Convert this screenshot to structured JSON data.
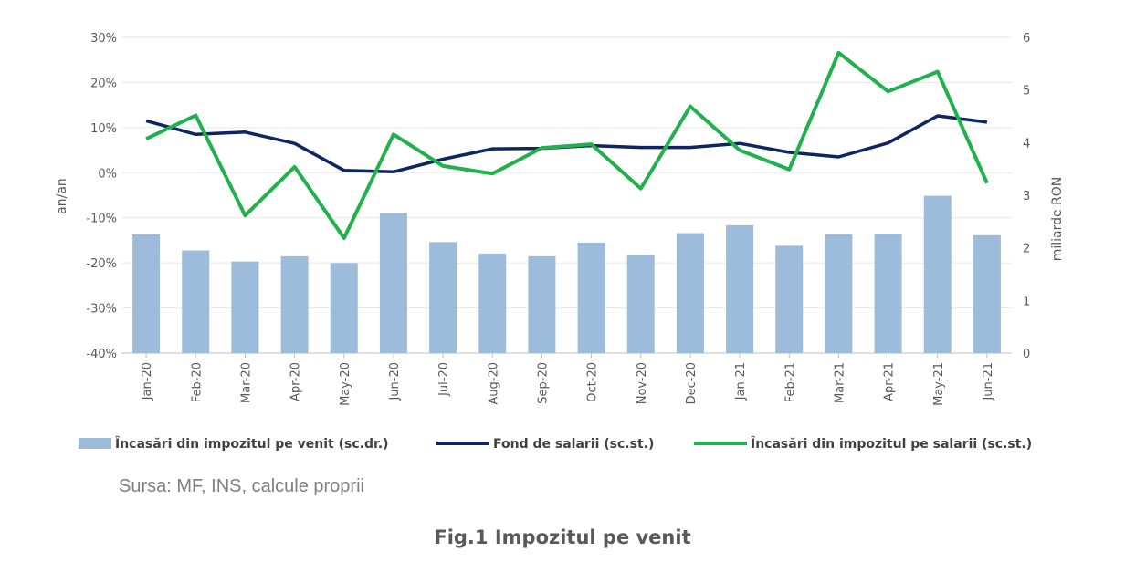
{
  "chart_data": {
    "type": "bar+line",
    "categories": [
      "Jan-20",
      "Feb-20",
      "Mar-20",
      "Apr-20",
      "May-20",
      "Jun-20",
      "Jul-20",
      "Aug-20",
      "Sep-20",
      "Oct-20",
      "Nov-20",
      "Dec-20",
      "Jan-21",
      "Feb-21",
      "Mar-21",
      "Apr-21",
      "May-21",
      "Jun-21"
    ],
    "left_axis": {
      "label": "an/an",
      "ticks": [
        "30%",
        "20%",
        "10%",
        "0%",
        "-10%",
        "-20%",
        "-30%",
        "-40%"
      ],
      "range": [
        -40,
        30
      ]
    },
    "right_axis": {
      "label": "miliarde RON",
      "ticks": [
        "6",
        "5",
        "4",
        "3",
        "2",
        "1",
        "0"
      ],
      "range": [
        0,
        6
      ]
    },
    "series": [
      {
        "name": "Încasări din impozitul pe venit (sc.dr.)",
        "type": "bar",
        "axis": "right",
        "color": "#9dbcdb",
        "values": [
          2.26,
          1.95,
          1.74,
          1.84,
          1.71,
          2.66,
          2.11,
          1.89,
          1.84,
          2.1,
          1.86,
          2.28,
          2.43,
          2.04,
          2.26,
          2.27,
          2.99,
          2.24
        ]
      },
      {
        "name": "Fond de salarii (sc.st.)",
        "type": "line",
        "axis": "left",
        "color": "#0d2560",
        "values": [
          11.5,
          8.5,
          9.0,
          6.5,
          0.5,
          0.2,
          3.0,
          5.3,
          5.4,
          6.0,
          5.6,
          5.6,
          6.5,
          4.5,
          3.5,
          6.6,
          12.6,
          11.2
        ]
      },
      {
        "name": "Încasări din impozitul pe salarii (sc.st.)",
        "type": "line",
        "axis": "left",
        "color": "#20b14c",
        "values": [
          7.5,
          12.7,
          -9.5,
          1.3,
          -14.5,
          8.5,
          1.5,
          -0.2,
          5.5,
          6.3,
          -3.5,
          14.7,
          5.0,
          0.7,
          26.6,
          18.0,
          22.4,
          -2.3
        ]
      }
    ],
    "grid": true,
    "legend_position": "bottom"
  },
  "source": "Sursa: MF, INS, calcule proprii",
  "figure_title": "Fig.1 Impozitul pe venit"
}
